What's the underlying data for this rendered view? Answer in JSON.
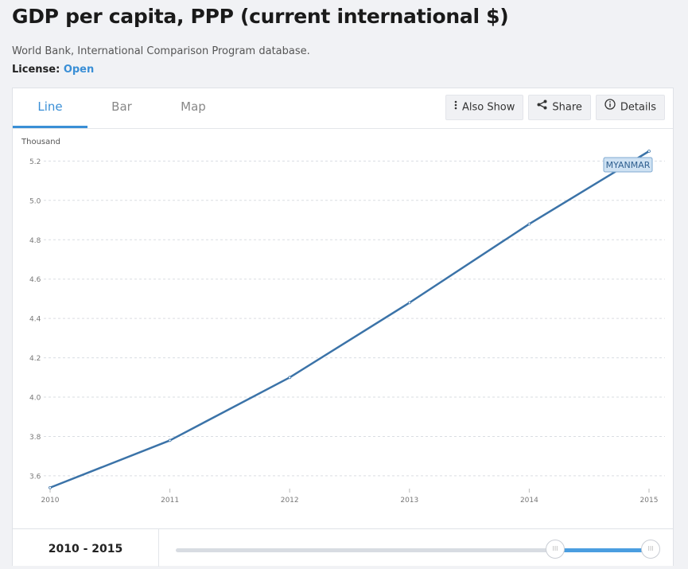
{
  "page": {
    "title": "GDP per capita, PPP (current international $)",
    "source": "World Bank, International Comparison Program database.",
    "license_label": "License:",
    "license_value": "Open"
  },
  "tabs": [
    {
      "label": "Line",
      "active": true
    },
    {
      "label": "Bar",
      "active": false
    },
    {
      "label": "Map",
      "active": false
    }
  ],
  "tools": {
    "also_show": "Also Show",
    "share": "Share",
    "details": "Details"
  },
  "colors": {
    "accent": "#3a8fd6",
    "series": "#3b73a8",
    "label_bg": "#cfe2f3",
    "label_border": "#7fa9d0"
  },
  "chart_data": {
    "type": "line",
    "title": "",
    "xlabel": "",
    "ylabel": "",
    "unit_label": "Thousand",
    "x": [
      2010,
      2011,
      2012,
      2013,
      2014,
      2015
    ],
    "x_tick_labels": [
      "2010",
      "2011",
      "2012",
      "2013",
      "2014",
      "2015"
    ],
    "y_ticks": [
      3.6,
      3.8,
      4.0,
      4.2,
      4.4,
      4.6,
      4.8,
      5.0,
      5.2
    ],
    "y_tick_labels": [
      "3.6",
      "3.8",
      "4.0",
      "4.2",
      "4.4",
      "4.6",
      "4.8",
      "5.0",
      "5.2"
    ],
    "ylim": [
      3.535,
      5.25
    ],
    "xlim": [
      2010,
      2015
    ],
    "grid": true,
    "series": [
      {
        "name": "MYANMAR",
        "values": [
          3.54,
          3.78,
          4.1,
          4.48,
          4.88,
          5.25
        ]
      }
    ]
  },
  "range": {
    "label": "2010 - 2015",
    "start_fraction": 0.795,
    "end_fraction": 0.995,
    "handle_glyph": "III"
  }
}
